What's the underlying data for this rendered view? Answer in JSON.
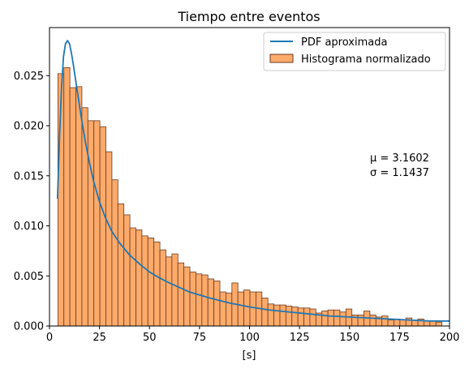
{
  "chart_data": {
    "type": "bar",
    "title": "Tiempo entre eventos",
    "xlabel": "[s]",
    "ylabel": "",
    "xlim": [
      0,
      200
    ],
    "ylim": [
      0,
      0.0298
    ],
    "x_ticks": [
      0,
      25,
      50,
      75,
      100,
      125,
      150,
      175,
      200
    ],
    "x_tick_labels": [
      "0",
      "25",
      "50",
      "75",
      "100",
      "125",
      "150",
      "175",
      "200"
    ],
    "y_ticks": [
      0,
      0.005,
      0.01,
      0.015,
      0.02,
      0.025
    ],
    "y_tick_labels": [
      "0.000",
      "0.005",
      "0.010",
      "0.015",
      "0.020",
      "0.025"
    ],
    "grid": false,
    "legend_position": "top-right",
    "annotation": {
      "mu_label": "μ = 3.1602",
      "sigma_label": "σ = 1.1437"
    },
    "colors": {
      "bar_fill": "#fdaa6a",
      "bar_edge": "#6b3a1f",
      "line": "#1f77b4"
    },
    "series": [
      {
        "name": "Histograma normalizado",
        "type": "bar",
        "bin_start": 4.2,
        "bin_width": 3.0,
        "values": [
          0.0252,
          0.0258,
          0.0238,
          0.0239,
          0.0218,
          0.0205,
          0.0205,
          0.0199,
          0.0174,
          0.0146,
          0.0122,
          0.0111,
          0.0098,
          0.0096,
          0.009,
          0.0088,
          0.0084,
          0.0076,
          0.0069,
          0.0072,
          0.0063,
          0.0059,
          0.0054,
          0.0052,
          0.0051,
          0.0047,
          0.0045,
          0.0034,
          0.0033,
          0.0043,
          0.0034,
          0.0036,
          0.0034,
          0.0034,
          0.0028,
          0.0022,
          0.0021,
          0.0021,
          0.002,
          0.0019,
          0.0018,
          0.0018,
          0.0017,
          0.0013,
          0.0015,
          0.0016,
          0.0016,
          0.0014,
          0.0017,
          0.0011,
          0.0011,
          0.0015,
          0.0011,
          0.0009,
          0.001,
          0.0006,
          0.0007,
          0.0006,
          0.0008,
          0.0006,
          0.0007,
          0.0005,
          0.0005,
          0.0004
        ]
      },
      {
        "name": "PDF aproximada",
        "type": "line",
        "x": [
          4.0,
          5.0,
          6.0,
          7.0,
          8.0,
          9.0,
          10.0,
          11.0,
          12.0,
          14.0,
          16.0,
          18.0,
          20.0,
          22.0,
          25.0,
          28.0,
          31.0,
          35.0,
          40.0,
          45.0,
          50.0,
          55.0,
          60.0,
          70.0,
          80.0,
          90.0,
          100.0,
          110.0,
          120.0,
          130.0,
          140.0,
          150.0,
          160.0,
          170.0,
          180.0,
          190.0,
          200.0
        ],
        "y": [
          0.0127,
          0.0188,
          0.0237,
          0.0269,
          0.0282,
          0.0285,
          0.0282,
          0.0272,
          0.026,
          0.0233,
          0.0207,
          0.0183,
          0.0163,
          0.0145,
          0.0124,
          0.0108,
          0.0095,
          0.0083,
          0.0071,
          0.0062,
          0.0054,
          0.0048,
          0.0043,
          0.0034,
          0.0028,
          0.0023,
          0.0019,
          0.0016,
          0.0014,
          0.0012,
          0.001,
          0.0009,
          0.0008,
          0.0007,
          0.0006,
          0.0005,
          0.0005
        ]
      }
    ]
  }
}
